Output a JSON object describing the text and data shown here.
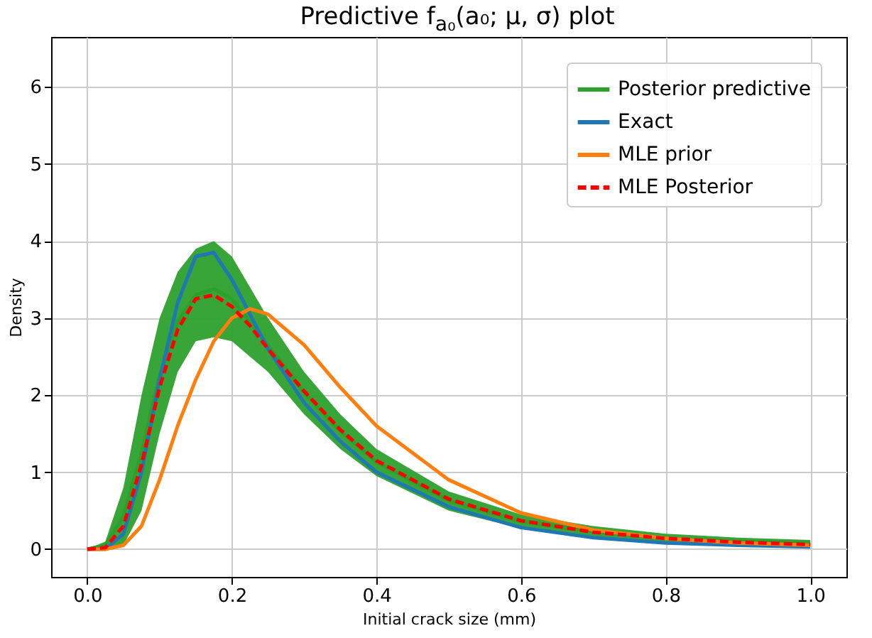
{
  "chart_data": {
    "type": "line",
    "title": "Predictive f$_{a₀}$(a₀; μ, σ) plot",
    "xlabel": "Initial crack size (mm)",
    "ylabel": "Density",
    "x": [
      0,
      0.025,
      0.05,
      0.075,
      0.1,
      0.125,
      0.15,
      0.175,
      0.2,
      0.225,
      0.25,
      0.3,
      0.35,
      0.4,
      0.5,
      0.6,
      0.7,
      0.8,
      0.9,
      1.0
    ],
    "series": [
      {
        "name": "Posterior predictive",
        "color": "#2ca02c",
        "values": [
          0,
          0.05,
          0.43,
          1.25,
          2.25,
          2.95,
          3.3,
          3.38,
          3.25,
          2.95,
          2.65,
          2.03,
          1.53,
          1.13,
          0.63,
          0.36,
          0.23,
          0.14,
          0.1,
          0.08
        ],
        "lower": [
          0,
          0,
          0.05,
          0.5,
          1.5,
          2.3,
          2.7,
          2.75,
          2.7,
          2.5,
          2.3,
          1.75,
          1.3,
          0.95,
          0.5,
          0.27,
          0.15,
          0.08,
          0.05,
          0.03
        ],
        "upper": [
          0,
          0.1,
          0.8,
          2.0,
          3.0,
          3.6,
          3.9,
          4.0,
          3.8,
          3.4,
          3.0,
          2.3,
          1.75,
          1.3,
          0.75,
          0.45,
          0.3,
          0.2,
          0.15,
          0.12
        ]
      },
      {
        "name": "Exact",
        "color": "#1f77b4",
        "values": [
          0,
          0,
          0.2,
          1.0,
          2.2,
          3.2,
          3.8,
          3.85,
          3.5,
          3.05,
          2.6,
          1.9,
          1.4,
          1.0,
          0.55,
          0.28,
          0.15,
          0.08,
          0.05,
          0.03
        ]
      },
      {
        "name": "MLE prior",
        "color": "#ff7f0e",
        "values": [
          0,
          0,
          0.05,
          0.3,
          0.9,
          1.6,
          2.2,
          2.7,
          3.0,
          3.12,
          3.05,
          2.65,
          2.1,
          1.6,
          0.9,
          0.47,
          0.25,
          0.14,
          0.08,
          0.05
        ]
      },
      {
        "name": "MLE Posterior",
        "color": "#ff0000",
        "line_style": "dashed",
        "values": [
          0,
          0.02,
          0.3,
          1.1,
          2.1,
          2.85,
          3.25,
          3.3,
          3.15,
          2.9,
          2.6,
          2.05,
          1.55,
          1.15,
          0.65,
          0.37,
          0.22,
          0.14,
          0.09,
          0.06
        ]
      }
    ],
    "xlim": [
      -0.05,
      1.05
    ],
    "xticks": [
      {
        "value": 0,
        "label": "0.0"
      },
      {
        "value": 0.2,
        "label": "0.2"
      },
      {
        "value": 0.4,
        "label": "0.4"
      },
      {
        "value": 0.6,
        "label": "0.6"
      },
      {
        "value": 0.8,
        "label": "0.8"
      },
      {
        "value": 1.0,
        "label": "1.0"
      }
    ],
    "ylim": [
      -0.36,
      6.65
    ],
    "yticks": [
      0,
      1,
      2,
      3,
      4,
      5,
      6
    ],
    "grid": true,
    "legend": "top right"
  }
}
